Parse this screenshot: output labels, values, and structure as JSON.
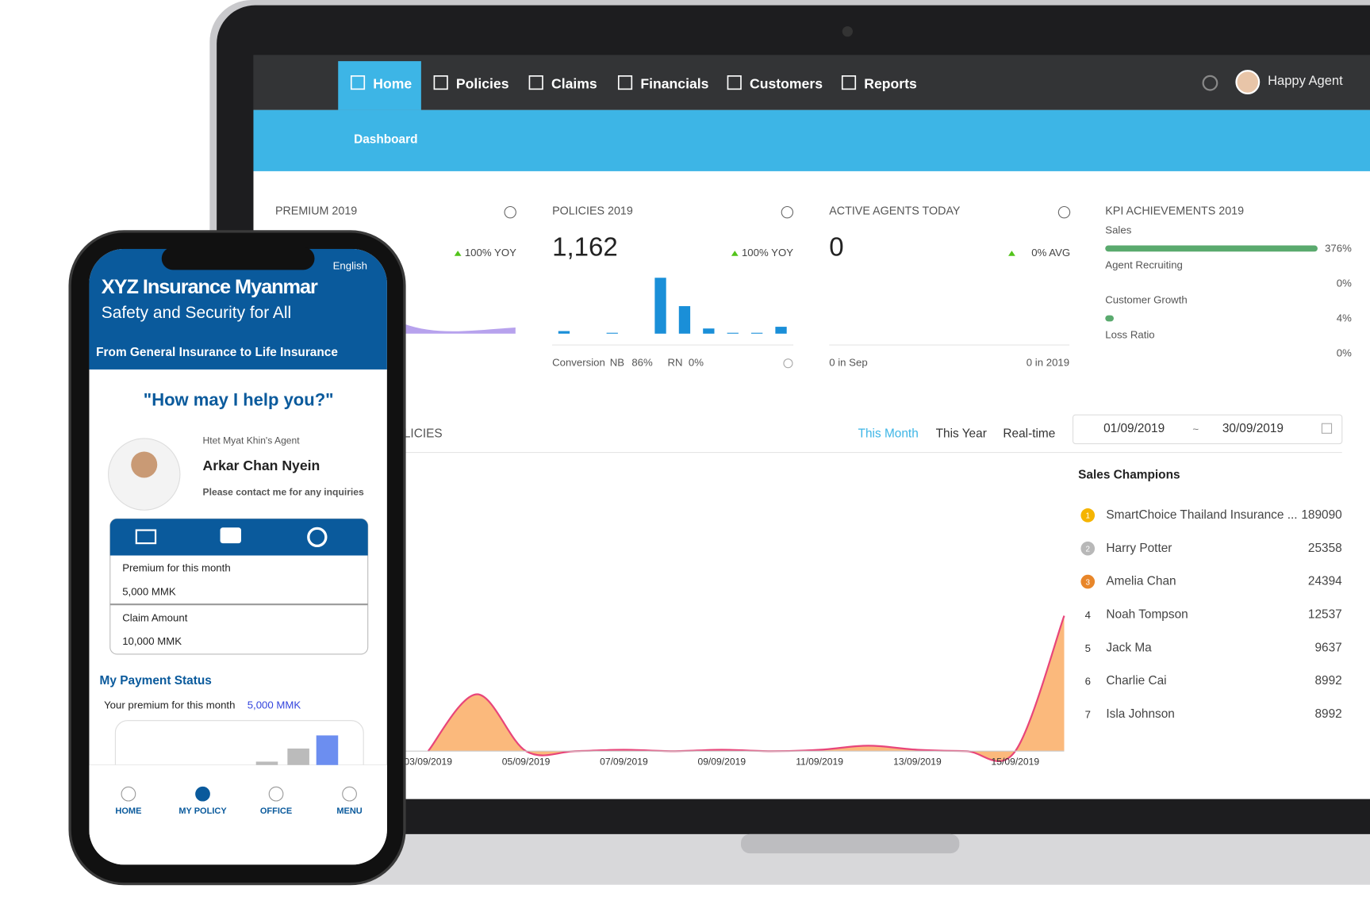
{
  "laptop": {
    "nav": [
      "Home",
      "Policies",
      "Claims",
      "Financials",
      "Customers",
      "Reports"
    ],
    "user": "Happy Agent",
    "subnav": "Dashboard",
    "cards": [
      {
        "title": "PREMIUM 2019",
        "change": "100% YOY"
      },
      {
        "title": "POLICIES 2019",
        "value": 1162,
        "value_label": "1,162",
        "change": "100% YOY",
        "footer": [
          "Conversion",
          "NB",
          "86%",
          "RN",
          "0%"
        ],
        "chart": {
          "type": "bar",
          "values": [
            3,
            0,
            1,
            0,
            65,
            32,
            6,
            1,
            1,
            8
          ],
          "ylim": [
            0,
            65
          ]
        }
      },
      {
        "title": "ACTIVE AGENTS TODAY",
        "value": 0,
        "change": "0% AVG",
        "footer": [
          "0 in Sep",
          "0 in 2019"
        ]
      }
    ],
    "kpi": {
      "title": "KPI ACHIEVEMENTS 2019",
      "items": [
        {
          "name": "Sales",
          "value": 376,
          "label": "376%"
        },
        {
          "name": "Agent Recruiting",
          "value": 0,
          "label": "0%"
        },
        {
          "name": "Customer Growth",
          "value": 4,
          "label": "4%"
        },
        {
          "name": "Loss Ratio",
          "value": 0,
          "label": "0%"
        }
      ]
    },
    "section": "LICIES",
    "tabs": [
      "This Month",
      "This Year",
      "Real-time"
    ],
    "date_from": "01/09/2019",
    "date_sep": "~",
    "date_to": "30/09/2019",
    "sales_chart": {
      "type": "area",
      "categories": [
        "03/09/2019",
        null,
        "05/09/2019",
        null,
        "07/09/2019",
        null,
        "09/09/2019",
        null,
        "11/09/2019",
        null,
        "13/09/2019",
        null,
        "15/09/2019",
        null
      ],
      "values": [
        0,
        42,
        0,
        0,
        1,
        0,
        1,
        0,
        1,
        4,
        1,
        0,
        0,
        100
      ],
      "ylim": [
        0,
        100
      ],
      "color": "#fbb97c",
      "line_color": "#e8457a"
    },
    "champions": {
      "title": "Sales Champions",
      "rows": [
        {
          "rank": 1,
          "name": "SmartChoice Thailand Insurance ...",
          "value": 189090
        },
        {
          "rank": 2,
          "name": "Harry Potter",
          "value": 25358
        },
        {
          "rank": 3,
          "name": "Amelia Chan",
          "value": 24394
        },
        {
          "rank": 4,
          "name": "Noah Tompson",
          "value": 12537
        },
        {
          "rank": 5,
          "name": "Jack Ma",
          "value": 9637
        },
        {
          "rank": 6,
          "name": "Charlie Cai",
          "value": 8992
        },
        {
          "rank": 7,
          "name": "Isla Johnson",
          "value": 8992
        }
      ]
    }
  },
  "phone": {
    "language": "English",
    "title": "XYZ Insurance Myanmar",
    "tagline": "Safety and Security for All",
    "banner": "From General Insurance to Life Insurance",
    "help": "\"How may I help you?\"",
    "agent_of": "Htet Myat Khin's Agent",
    "agent": "Arkar Chan Nyein",
    "contact": "Please contact me for any inquiries",
    "items": [
      {
        "label": "Premium for this month",
        "value": "5,000 MMK"
      },
      {
        "label": "Claim Amount",
        "value": "10,000 MMK"
      }
    ],
    "payment_title": "My Payment Status",
    "payment_text": "Your premium for this month",
    "payment_amount": "5,000 MMK",
    "payment_chart": {
      "type": "bar",
      "values": [
        4,
        19,
        34
      ],
      "ylim": [
        0,
        40
      ]
    },
    "nav": [
      "HOME",
      "MY POLICY",
      "OFFICE",
      "MENU"
    ]
  }
}
